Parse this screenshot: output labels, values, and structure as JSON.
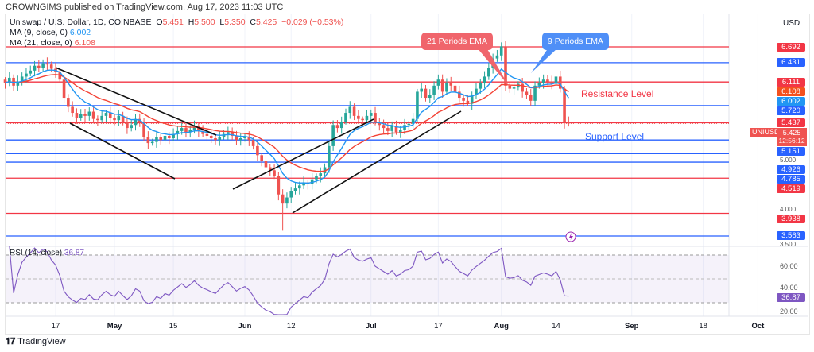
{
  "publisher": "CROWNGIMS published on TradingView.com, Aug 17, 2023 11:03 UTC",
  "legend": {
    "symbol": "Uniswap / U.S. Dollar, 1D, COINBASE",
    "o_label": "O",
    "o": "5.451",
    "h_label": "H",
    "h": "5.500",
    "l_label": "L",
    "l": "5.350",
    "c_label": "C",
    "c": "5.425",
    "change": "−0.029 (−0.53%)",
    "ma9_label": "MA (9, close, 0)",
    "ma9": "6.002",
    "ma21_label": "MA (21, close, 0)",
    "ma21": "6.108",
    "rsi_label": "RSI (14, close)",
    "rsi": "36.87"
  },
  "currency": "USD",
  "colors": {
    "up": "#26a69a",
    "down": "#ef5350",
    "red_line": "#f23645",
    "blue_line": "#2962ff",
    "ema9": "#2196f3",
    "ema21": "#f44336",
    "rsi": "#7e57c2"
  },
  "levels": [
    {
      "price": 6.692,
      "label": "6.692",
      "color": "red"
    },
    {
      "price": 6.431,
      "label": "6.431",
      "color": "blue"
    },
    {
      "price": 6.111,
      "label": "6.111",
      "color": "red"
    },
    {
      "price": 5.72,
      "label": "5.720",
      "color": "blue"
    },
    {
      "price": 5.437,
      "label": "5.437",
      "color": "red"
    },
    {
      "price": 5.151,
      "label": "5.151",
      "color": "blue"
    },
    {
      "price": 4.926,
      "label": "4.926",
      "color": "blue"
    },
    {
      "price": 4.785,
      "label": "4.785",
      "color": "blue"
    },
    {
      "price": 4.519,
      "label": "4.519",
      "color": "red"
    },
    {
      "price": 3.938,
      "label": "3.938",
      "color": "red"
    },
    {
      "price": 3.563,
      "label": "3.563",
      "color": "blue"
    }
  ],
  "extra_labels": [
    {
      "price": 6.108,
      "label": "6.108",
      "color": "#f4511e"
    },
    {
      "price": 6.002,
      "label": "6.002",
      "color": "#2196f3"
    }
  ],
  "grey_ticks": [
    "5.000",
    "4.000",
    "3.500"
  ],
  "last_price": {
    "symbol": "UNIUSD",
    "price": "5.425",
    "countdown": "12:56:12"
  },
  "annotations": {
    "ema21": "21 Periods EMA",
    "ema9": "9 Periods EMA",
    "resistance": "Resistance Level",
    "support": "Support Level"
  },
  "rsi_axis": [
    "60.00",
    "40.00",
    "20.00"
  ],
  "rsi_value": "36.87",
  "x_ticks": [
    "17",
    "May",
    "15",
    "Jun",
    "12",
    "Jul",
    "17",
    "Aug",
    "14",
    "Sep",
    "18",
    "Oct"
  ],
  "footer": "TradingView",
  "chart_data": {
    "type": "candlestick",
    "title": "Uniswap / U.S. Dollar, 1D, COINBASE",
    "start_date": "2023-04-05",
    "ylim": [
      3.5,
      6.8
    ],
    "closes": [
      6.1,
      6.18,
      6.05,
      6.12,
      6.2,
      6.25,
      6.3,
      6.38,
      6.35,
      6.42,
      6.4,
      6.33,
      6.28,
      6.15,
      5.85,
      5.7,
      5.6,
      5.52,
      5.58,
      5.55,
      5.62,
      5.5,
      5.48,
      5.55,
      5.6,
      5.52,
      5.48,
      5.55,
      5.45,
      5.35,
      5.4,
      5.5,
      5.45,
      5.2,
      5.1,
      5.12,
      5.2,
      5.15,
      5.22,
      5.18,
      5.25,
      5.3,
      5.35,
      5.28,
      5.32,
      5.38,
      5.3,
      5.25,
      5.22,
      5.18,
      5.15,
      5.2,
      5.25,
      5.28,
      5.22,
      5.15,
      5.18,
      5.2,
      5.15,
      5.05,
      4.9,
      4.8,
      4.7,
      4.65,
      4.55,
      4.25,
      4.1,
      4.2,
      4.3,
      4.35,
      4.4,
      4.45,
      4.42,
      4.5,
      4.55,
      4.6,
      4.7,
      5.05,
      5.4,
      5.35,
      5.45,
      5.6,
      5.7,
      5.55,
      5.5,
      5.48,
      5.55,
      5.6,
      5.45,
      5.4,
      5.35,
      5.3,
      5.38,
      5.28,
      5.32,
      5.4,
      5.42,
      5.5,
      5.95,
      6.0,
      5.85,
      5.9,
      6.05,
      6.15,
      5.95,
      6.1,
      6.05,
      5.95,
      5.85,
      5.8,
      5.75,
      5.9,
      6.0,
      6.1,
      6.2,
      6.35,
      6.5,
      6.55,
      6.7,
      6.05,
      6.0,
      6.02,
      6.08,
      5.95,
      5.9,
      5.8,
      6.05,
      6.1,
      6.15,
      6.12,
      6.08,
      6.2,
      6.0,
      5.44,
      5.425
    ],
    "series": [
      {
        "name": "MA 9",
        "type": "ema",
        "period": 9
      },
      {
        "name": "MA 21",
        "type": "ema",
        "period": 21
      },
      {
        "name": "RSI 14",
        "type": "rsi",
        "period": 14
      }
    ]
  }
}
